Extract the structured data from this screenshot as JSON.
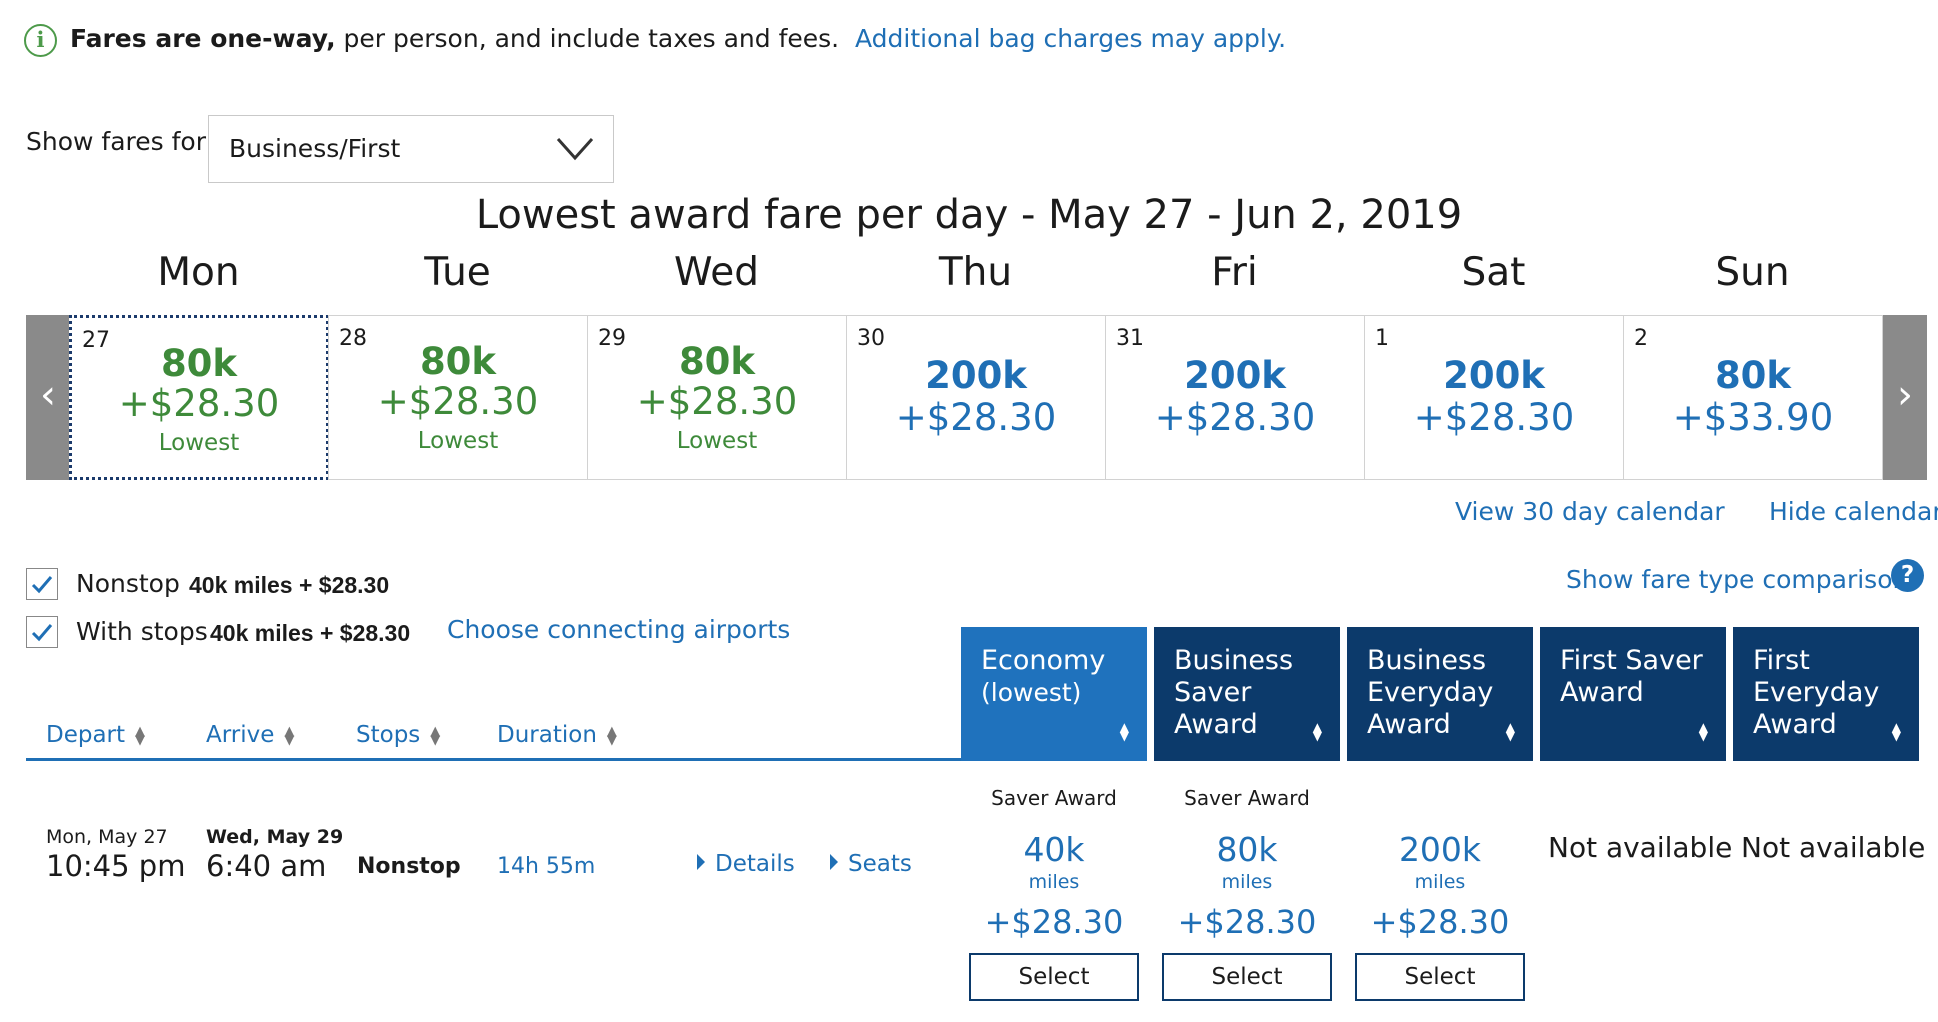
{
  "notice": {
    "bold": "Fares are one-way,",
    "text": " per person, and include taxes and fees.",
    "link": "Additional bag charges may apply."
  },
  "fares_for": {
    "label": "Show fares for",
    "value": "Business/First"
  },
  "calendar": {
    "title": "Lowest award fare per day - May 27 - Jun 2, 2019",
    "days": [
      {
        "dow": "Mon",
        "date": "27",
        "miles": "80k",
        "price": "+$28.30",
        "tag": "Lowest",
        "lowest": true
      },
      {
        "dow": "Tue",
        "date": "28",
        "miles": "80k",
        "price": "+$28.30",
        "tag": "Lowest",
        "lowest": true
      },
      {
        "dow": "Wed",
        "date": "29",
        "miles": "80k",
        "price": "+$28.30",
        "tag": "Lowest",
        "lowest": true
      },
      {
        "dow": "Thu",
        "date": "30",
        "miles": "200k",
        "price": "+$28.30",
        "tag": "",
        "lowest": false
      },
      {
        "dow": "Fri",
        "date": "31",
        "miles": "200k",
        "price": "+$28.30",
        "tag": "",
        "lowest": false
      },
      {
        "dow": "Sat",
        "date": "1",
        "miles": "200k",
        "price": "+$28.30",
        "tag": "",
        "lowest": false
      },
      {
        "dow": "Sun",
        "date": "2",
        "miles": "80k",
        "price": "+$33.90",
        "tag": "",
        "lowest": false
      }
    ],
    "prev_icon": "chevron-left-icon",
    "next_icon": "chevron-right-icon",
    "view30": "View 30 day calendar",
    "hide": "Hide calendar"
  },
  "filters": {
    "nonstop": {
      "label": "Nonstop",
      "value": "40k miles + $28.30",
      "checked": true
    },
    "stops": {
      "label": "With stops",
      "value": "40k miles + $28.30",
      "checked": true
    },
    "connecting": "Choose connecting airports",
    "fare_comparison": "Show fare type comparison",
    "help": "?"
  },
  "sort_headers": [
    "Depart",
    "Arrive",
    "Stops",
    "Duration"
  ],
  "fare_columns": [
    {
      "lines": [
        "Economy",
        "(lowest)"
      ],
      "active": true
    },
    {
      "lines": [
        "Business",
        "Saver",
        "Award"
      ],
      "active": false
    },
    {
      "lines": [
        "Business",
        "Everyday",
        "Award"
      ],
      "active": false
    },
    {
      "lines": [
        "First Saver",
        "Award"
      ],
      "active": false
    },
    {
      "lines": [
        "First",
        "Everyday",
        "Award"
      ],
      "active": false
    }
  ],
  "flight": {
    "depart_day": "Mon, May 27",
    "depart_time": "10:45 pm",
    "arrive_day": "Wed, May 29",
    "arrive_time": "6:40 am",
    "stops": "Nonstop",
    "duration": "14h 55m",
    "details": "Details",
    "seats": "Seats",
    "fares": [
      {
        "label": "Saver Award",
        "miles": "40k",
        "unit": "miles",
        "price": "+$28.30",
        "button": "Select"
      },
      {
        "label": "Saver Award",
        "miles": "80k",
        "unit": "miles",
        "price": "+$28.30",
        "button": "Select"
      },
      {
        "label": "",
        "miles": "200k",
        "unit": "miles",
        "price": "+$28.30",
        "button": "Select"
      }
    ],
    "not_available": [
      "Not available",
      "Not available"
    ]
  }
}
